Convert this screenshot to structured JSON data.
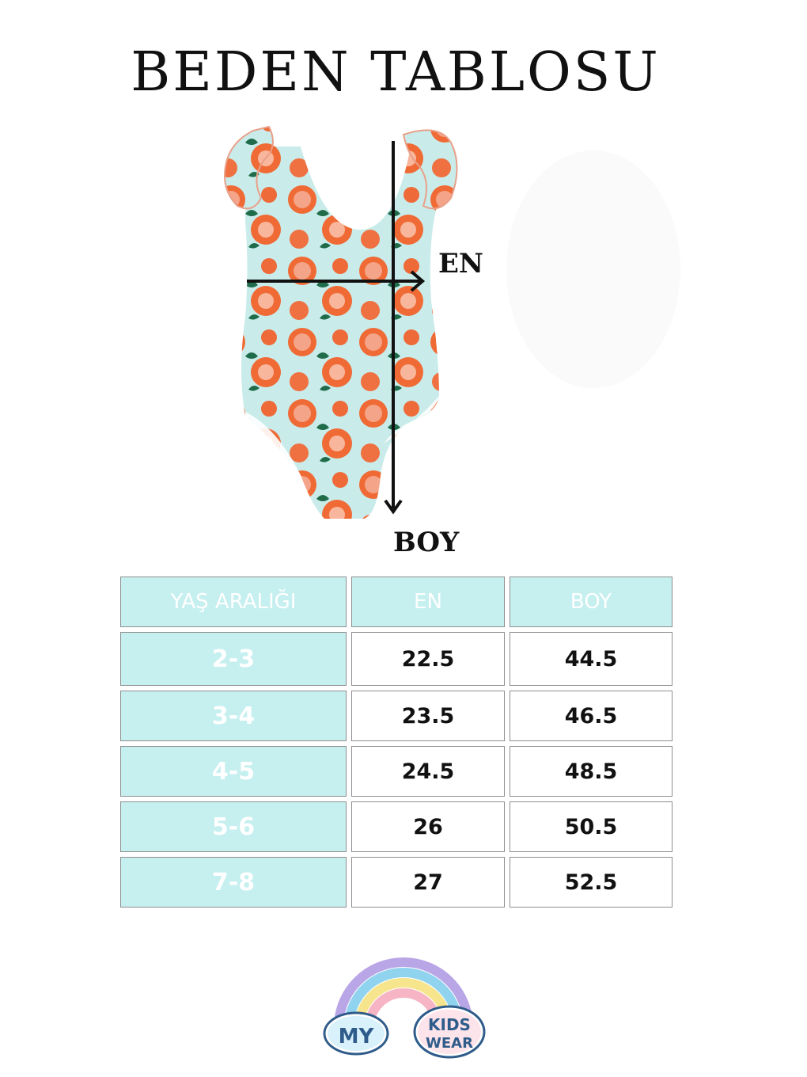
{
  "page": {
    "title": "BEDEN TABLOSU"
  },
  "diagram": {
    "width_label": "EN",
    "length_label": "BOY"
  },
  "size_table": {
    "headers": [
      "YAŞ ARALIĞI",
      "EN",
      "BOY"
    ],
    "rows": [
      {
        "age": "2-3",
        "en": "22.5",
        "boy": "44.5"
      },
      {
        "age": "3-4",
        "en": "23.5",
        "boy": "46.5"
      },
      {
        "age": "4-5",
        "en": "24.5",
        "boy": "48.5"
      },
      {
        "age": "5-6",
        "en": "26",
        "boy": "50.5"
      },
      {
        "age": "7-8",
        "en": "27",
        "boy": "52.5"
      }
    ]
  },
  "brand": {
    "word1": "MY",
    "word2": "KIDS",
    "word3": "WEAR"
  },
  "colors": {
    "header_cell": "#c6efef",
    "swimsuit_base": "#c9ecea",
    "orange": "#f06a35",
    "leaf": "#1f6b4a",
    "arrow": "#111111"
  }
}
